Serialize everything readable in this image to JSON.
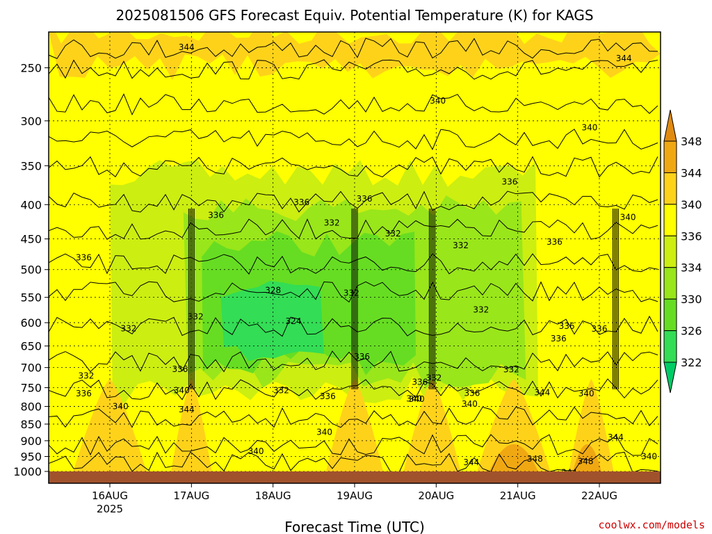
{
  "title": "2025081506 GFS Forecast Equiv. Potential Temperature (K) for KAGS",
  "xlabel": "Forecast Time (UTC)",
  "credit": "coolwx.com/models",
  "colors": {
    "c322": "#00cc66",
    "c326": "#33dd55",
    "c330": "#66dd22",
    "c334": "#99e61a",
    "c336": "#ccee11",
    "c340": "#ffff00",
    "c344": "#ffd21a",
    "c348": "#f0a812",
    "c352": "#e08a10",
    "ground": "#a0522d"
  },
  "chart_data": {
    "type": "heatmap",
    "title": "2025081506 GFS Forecast Equiv. Potential Temperature (K) for KAGS",
    "xlabel": "Forecast Time (UTC)",
    "ylabel": "",
    "x_ticks": [
      "16AUG",
      "17AUG",
      "18AUG",
      "19AUG",
      "20AUG",
      "21AUG",
      "22AUG"
    ],
    "x_year": "2025",
    "y_ticks": [
      250,
      300,
      350,
      400,
      450,
      500,
      550,
      600,
      650,
      700,
      750,
      800,
      850,
      900,
      950,
      1000
    ],
    "y_scale": "log (pressure, hPa)",
    "y_range": [
      200,
      1000
    ],
    "x_range_days": [
      15.25,
      22.75
    ],
    "grid": true,
    "colorbar": {
      "levels": [
        322,
        326,
        330,
        334,
        336,
        340,
        344,
        348
      ],
      "labels": [
        "348",
        "344",
        "340",
        "336",
        "334",
        "330",
        "326",
        "322"
      ],
      "extends": "both"
    },
    "contour_labels": [
      {
        "text": "344",
        "t": 18.99,
        "p": 213
      },
      {
        "text": "344",
        "t": 22.0,
        "p": 209
      },
      {
        "text": "344",
        "t": 16.94,
        "p": 233
      },
      {
        "text": "344",
        "t": 22.3,
        "p": 242
      },
      {
        "text": "340",
        "t": 20.02,
        "p": 280
      },
      {
        "text": "340",
        "t": 21.88,
        "p": 307
      },
      {
        "text": "336",
        "t": 20.9,
        "p": 370
      },
      {
        "text": "336",
        "t": 17.3,
        "p": 415
      },
      {
        "text": "336",
        "t": 18.35,
        "p": 397
      },
      {
        "text": "336",
        "t": 19.12,
        "p": 392
      },
      {
        "text": "340",
        "t": 22.35,
        "p": 418
      },
      {
        "text": "332",
        "t": 18.72,
        "p": 426
      },
      {
        "text": "332",
        "t": 19.47,
        "p": 442
      },
      {
        "text": "332",
        "t": 20.3,
        "p": 460
      },
      {
        "text": "336",
        "t": 21.45,
        "p": 455
      },
      {
        "text": "336",
        "t": 15.68,
        "p": 480
      },
      {
        "text": "328",
        "t": 18.0,
        "p": 537
      },
      {
        "text": "332",
        "t": 18.96,
        "p": 542
      },
      {
        "text": "332",
        "t": 17.05,
        "p": 588
      },
      {
        "text": "332",
        "t": 16.23,
        "p": 612
      },
      {
        "text": "324",
        "t": 18.25,
        "p": 597
      },
      {
        "text": "332",
        "t": 20.55,
        "p": 574
      },
      {
        "text": "336",
        "t": 21.6,
        "p": 607
      },
      {
        "text": "336",
        "t": 21.5,
        "p": 634
      },
      {
        "text": "336",
        "t": 22.0,
        "p": 613
      },
      {
        "text": "336",
        "t": 19.09,
        "p": 674
      },
      {
        "text": "336",
        "t": 16.86,
        "p": 704
      },
      {
        "text": "332",
        "t": 15.71,
        "p": 720
      },
      {
        "text": "340",
        "t": 16.88,
        "p": 757
      },
      {
        "text": "336",
        "t": 15.68,
        "p": 765
      },
      {
        "text": "332",
        "t": 18.1,
        "p": 757
      },
      {
        "text": "336",
        "t": 18.67,
        "p": 773
      },
      {
        "text": "336",
        "t": 19.8,
        "p": 736
      },
      {
        "text": "332",
        "t": 19.97,
        "p": 725
      },
      {
        "text": "340",
        "t": 19.73,
        "p": 779
      },
      {
        "text": "332",
        "t": 20.92,
        "p": 705
      },
      {
        "text": "340",
        "t": 19.76,
        "p": 780
      },
      {
        "text": "336",
        "t": 20.44,
        "p": 764
      },
      {
        "text": "340",
        "t": 20.41,
        "p": 793
      },
      {
        "text": "344",
        "t": 21.3,
        "p": 763
      },
      {
        "text": "340",
        "t": 21.84,
        "p": 765
      },
      {
        "text": "340",
        "t": 16.13,
        "p": 800
      },
      {
        "text": "344",
        "t": 16.94,
        "p": 809
      },
      {
        "text": "340",
        "t": 18.63,
        "p": 874
      },
      {
        "text": "344",
        "t": 22.2,
        "p": 890
      },
      {
        "text": "340",
        "t": 17.79,
        "p": 933
      },
      {
        "text": "348",
        "t": 21.21,
        "p": 958
      },
      {
        "text": "344",
        "t": 20.43,
        "p": 970
      },
      {
        "text": "348",
        "t": 21.83,
        "p": 966
      },
      {
        "text": "340",
        "t": 22.61,
        "p": 950
      },
      {
        "text": "344",
        "t": 21.63,
        "p": 1004
      }
    ]
  }
}
